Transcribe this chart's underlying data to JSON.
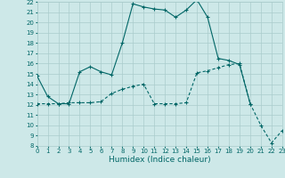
{
  "xlabel": "Humidex (Indice chaleur)",
  "background_color": "#cde8e8",
  "grid_color": "#aacccc",
  "line_color": "#006666",
  "xlim": [
    0,
    23
  ],
  "ylim": [
    8,
    22
  ],
  "x_ticks": [
    0,
    1,
    2,
    3,
    4,
    5,
    6,
    7,
    8,
    9,
    10,
    11,
    12,
    13,
    14,
    15,
    16,
    17,
    18,
    19,
    20,
    21,
    22,
    23
  ],
  "y_ticks": [
    8,
    9,
    10,
    11,
    12,
    13,
    14,
    15,
    16,
    17,
    18,
    19,
    20,
    21,
    22
  ],
  "line1_x": [
    0,
    1,
    2,
    3,
    4,
    5,
    6,
    7,
    8,
    9,
    10,
    11,
    12,
    13,
    14,
    15,
    16,
    17,
    18,
    19,
    20
  ],
  "line1_y": [
    14.8,
    12.8,
    12.1,
    12.1,
    15.2,
    15.7,
    15.2,
    14.9,
    18.0,
    21.8,
    21.5,
    21.3,
    21.2,
    20.5,
    21.2,
    22.2,
    20.5,
    16.5,
    16.3,
    15.9,
    12.1
  ],
  "line2_x": [
    0,
    1,
    2,
    3,
    4,
    5,
    6,
    7,
    8,
    9,
    10,
    11,
    12,
    13,
    14,
    15,
    16,
    17,
    18,
    19,
    20,
    21,
    22,
    23
  ],
  "line2_y": [
    12.1,
    12.1,
    12.1,
    12.2,
    12.2,
    12.2,
    12.3,
    13.1,
    13.5,
    13.8,
    14.0,
    12.1,
    12.1,
    12.1,
    12.2,
    15.1,
    15.3,
    15.6,
    15.9,
    16.0,
    12.1,
    10.0,
    8.3,
    9.5
  ]
}
